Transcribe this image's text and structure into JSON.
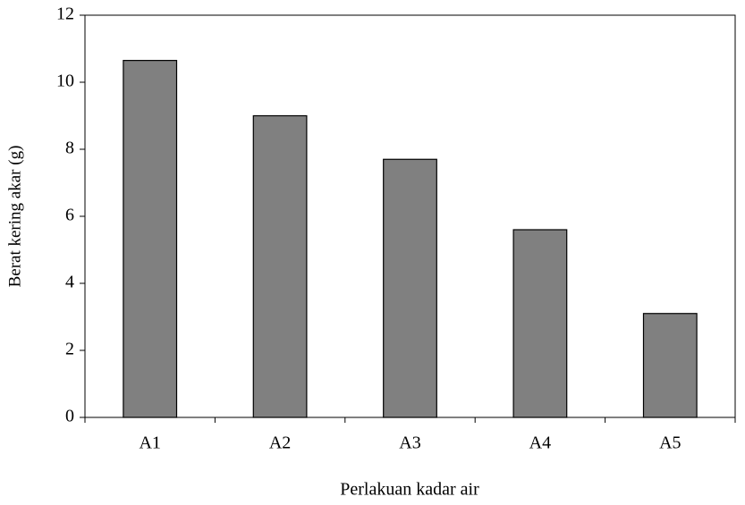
{
  "chart_data": {
    "type": "bar",
    "x_label": "Perlakuan kadar air",
    "y_label": "Berat kering akar (g)",
    "categories": [
      "A1",
      "A2",
      "A3",
      "A4",
      "A5"
    ],
    "values": [
      10.65,
      9,
      7.7,
      5.6,
      3.1
    ],
    "color": "#808080",
    "ylim": [
      0,
      12
    ],
    "yticks": [
      0,
      2,
      4,
      6,
      8,
      10,
      12
    ],
    "grid": false
  }
}
